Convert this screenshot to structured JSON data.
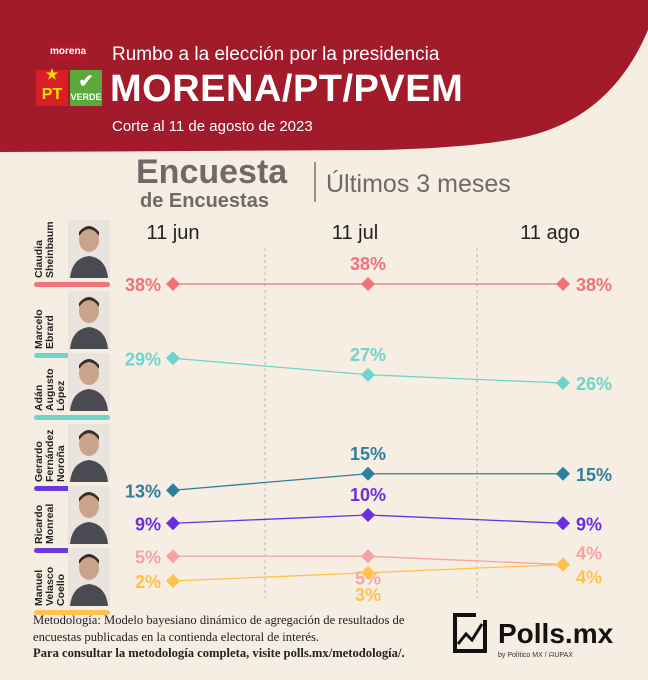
{
  "header": {
    "logo_morena": "morena",
    "logo_pt": "PT",
    "logo_verde": "VERDE",
    "subtitle": "Rumbo a la elección por la presidencia",
    "title": "MORENA/PT/PVEM",
    "date": "Corte al 11 de agosto de 2023",
    "color": "#a11b2a"
  },
  "survey": {
    "title": "Encuesta",
    "subtitle": "de Encuestas",
    "range": "Últimos 3 meses"
  },
  "candidates": [
    {
      "name": "Claudia\nSheinbaum",
      "color": "#f0717a"
    },
    {
      "name": "Marcelo\nEbrard",
      "color": "#6fd5cc"
    },
    {
      "name": "Adán\nAugusto\nLópez",
      "color": "#6fd5cc"
    },
    {
      "name": "Gerardo\nFernández\nNoroña",
      "color": "#6a3ad9"
    },
    {
      "name": "Ricardo\nMonreal",
      "color": "#6a3ad9"
    },
    {
      "name": "Manuel\nVelasco\nCoello",
      "color": "#ffc24a"
    }
  ],
  "chart_data": {
    "type": "line",
    "x": [
      "11 jun",
      "11 jul",
      "11 ago"
    ],
    "series": [
      {
        "values": [
          38,
          38,
          38
        ],
        "labels": [
          "38%",
          "38%",
          "38%"
        ],
        "color": "#f0717a"
      },
      {
        "values": [
          29,
          27,
          26
        ],
        "labels": [
          "29%",
          "27%",
          "26%"
        ],
        "color": "#6fd5cc"
      },
      {
        "values": [
          13,
          15,
          15
        ],
        "labels": [
          "13%",
          "15%",
          "15%"
        ],
        "color": "#2d7f9e"
      },
      {
        "values": [
          9,
          10,
          9
        ],
        "labels": [
          "9%",
          "10%",
          "9%"
        ],
        "color": "#6a2fe0"
      },
      {
        "values": [
          5,
          5,
          4
        ],
        "labels": [
          "5%",
          "5%",
          "4%"
        ],
        "color": "#f7a3a3"
      },
      {
        "values": [
          2,
          3,
          4
        ],
        "labels": [
          "2%",
          "3%",
          "4%"
        ],
        "color": "#ffc24a"
      }
    ]
  },
  "footer": {
    "methodology": "Metodología: Modelo bayesiano dinámico de agregación de resultados de encuestas publicadas en la contienda electoral de interés.",
    "link_text": "Para consultar la metodología completa, visite polls.mx/metodología/.",
    "brand": "Polls.mx",
    "brand_tag": "by Político MX  /  ᗣUPAX"
  }
}
